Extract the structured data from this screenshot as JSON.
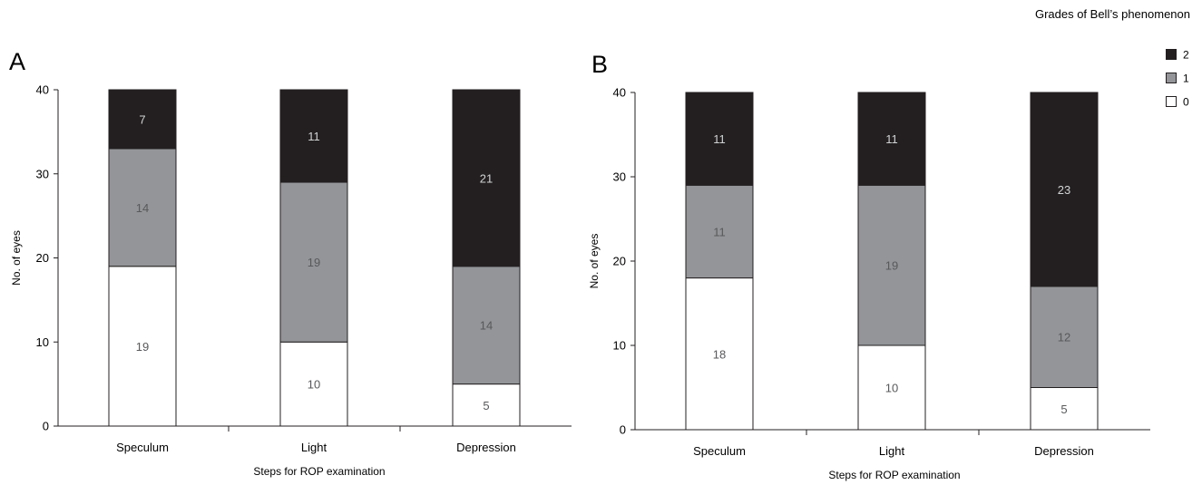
{
  "legend": {
    "title": "Grades of Bell’s phenomenon",
    "position": "top-right",
    "items": [
      {
        "label": "2",
        "color": "#231f20"
      },
      {
        "label": "1",
        "color": "#939598"
      },
      {
        "label": "0",
        "color": "#ffffff"
      }
    ]
  },
  "chart_data": [
    {
      "type": "bar",
      "stacked": true,
      "panel_label": "A",
      "categories": [
        "Speculum",
        "Light",
        "Depression"
      ],
      "series": [
        {
          "name": "0",
          "values": [
            19,
            10,
            5
          ],
          "color": "#ffffff",
          "label_color": "#58595b"
        },
        {
          "name": "1",
          "values": [
            14,
            19,
            14
          ],
          "color": "#939598",
          "label_color": "#58595b"
        },
        {
          "name": "2",
          "values": [
            7,
            11,
            21
          ],
          "color": "#231f20",
          "label_color": "#d1d3d4"
        }
      ],
      "xlabel": "Steps for ROP examination",
      "ylabel": "No. of eyes",
      "ylim": [
        0,
        40
      ],
      "yticks": [
        0,
        10,
        20,
        30,
        40
      ],
      "grid": false
    },
    {
      "type": "bar",
      "stacked": true,
      "panel_label": "B",
      "categories": [
        "Speculum",
        "Light",
        "Depression"
      ],
      "series": [
        {
          "name": "0",
          "values": [
            18,
            10,
            5
          ],
          "color": "#ffffff",
          "label_color": "#58595b"
        },
        {
          "name": "1",
          "values": [
            11,
            19,
            12
          ],
          "color": "#939598",
          "label_color": "#58595b"
        },
        {
          "name": "2",
          "values": [
            11,
            11,
            23
          ],
          "color": "#231f20",
          "label_color": "#d1d3d4"
        }
      ],
      "xlabel": "Steps for ROP examination",
      "ylabel": "No. of eyes",
      "ylim": [
        0,
        40
      ],
      "yticks": [
        0,
        10,
        20,
        30,
        40
      ],
      "grid": false
    }
  ]
}
